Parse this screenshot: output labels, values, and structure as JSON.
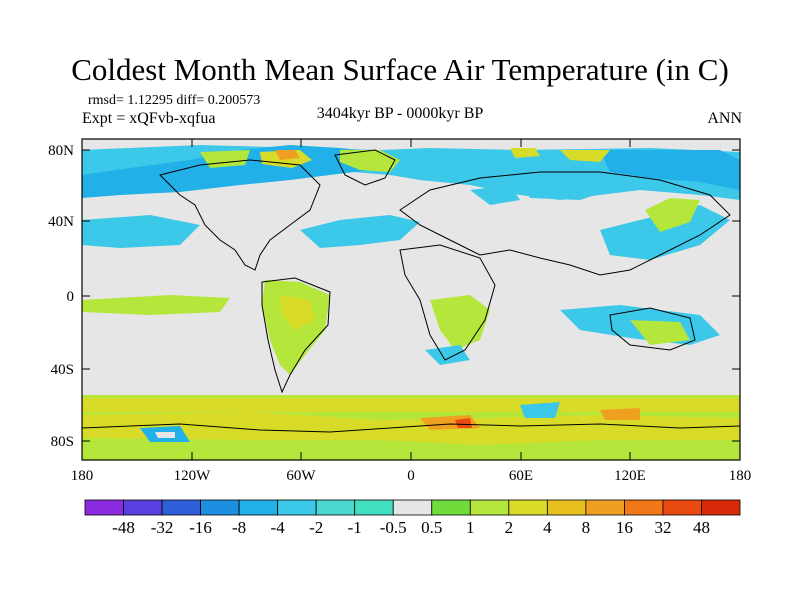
{
  "title": "Coldest Month Mean Surface Air Temperature (in C)",
  "stats": "rmsd= 1.12295 diff= 0.200573",
  "experiment": "Expt = xQFvb-xqfua",
  "period": "3404kyr BP - 0000kyr BP",
  "season": "ANN",
  "axes": {
    "x_ticks": [
      "180",
      "120W",
      "60W",
      "0",
      "60E",
      "120E",
      "180"
    ],
    "y_ticks": [
      "80N",
      "40N",
      "0",
      "40S",
      "80S"
    ]
  },
  "colorbar": {
    "labels": [
      "-48",
      "-32",
      "-16",
      "-8",
      "-4",
      "-2",
      "-1",
      "-0.5",
      "0.5",
      "1",
      "2",
      "4",
      "8",
      "16",
      "32",
      "48"
    ],
    "colors": [
      "#8a2be2",
      "#5a3fe0",
      "#2f5fd8",
      "#1e8fe0",
      "#21b0e8",
      "#3cc8e8",
      "#4ad8d0",
      "#40e0c0",
      "#e6e6e6",
      "#6fdc3c",
      "#b4e63c",
      "#d8dc28",
      "#e8c020",
      "#f0a020",
      "#f07818",
      "#e84a10",
      "#d82a08"
    ]
  },
  "legend_colors": {
    "neutral": "#e6e6e6",
    "cool": "#3cc8e8",
    "cooler": "#21b0e8",
    "warm": "#b4e63c",
    "warmer": "#d8dc28",
    "hot": "#f0a020",
    "hottest": "#e84a10"
  }
}
